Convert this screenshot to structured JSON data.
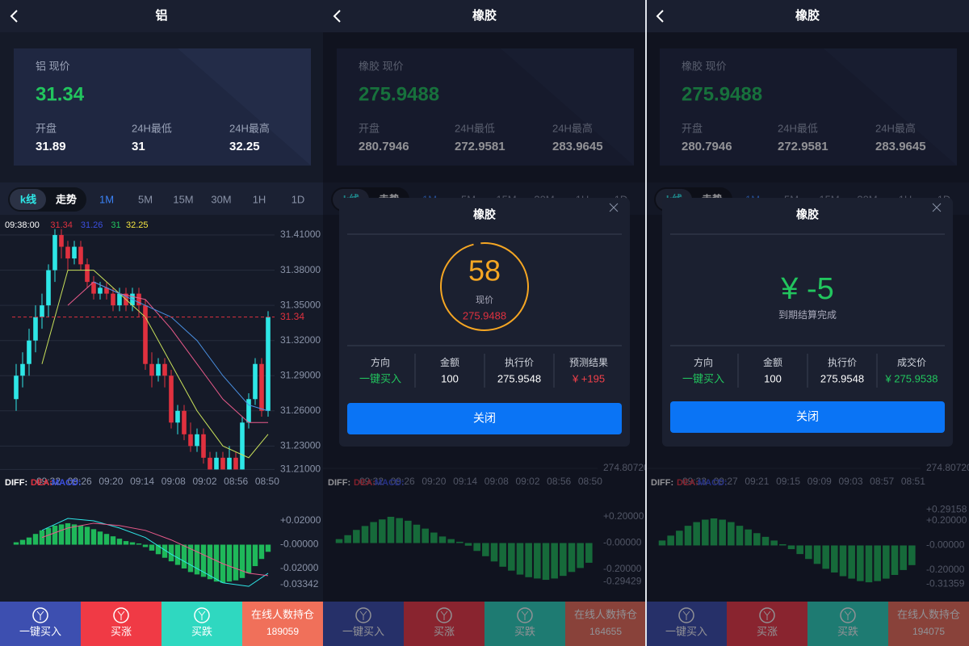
{
  "panels": [
    {
      "title": "铝",
      "card": {
        "label": "铝 现价",
        "price": "31.34",
        "stats": [
          {
            "label": "开盘",
            "value": "31.89"
          },
          {
            "label": "24H最低",
            "value": "31"
          },
          {
            "label": "24H最高",
            "value": "32.25"
          }
        ]
      },
      "tabs": [
        "k线",
        "走势"
      ],
      "periods": [
        "1M",
        "5M",
        "15M",
        "30M",
        "1H",
        "1D"
      ],
      "chart": {
        "type": "candlestick",
        "legend": [
          {
            "text": "09:38:00",
            "color": "#ffffff"
          },
          {
            "text": "31.34",
            "color": "#e0313f"
          },
          {
            "text": "31.26",
            "color": "#3b4fe0"
          },
          {
            "text": "31",
            "color": "#22c55e"
          },
          {
            "text": "32.25",
            "color": "#f5e642"
          }
        ],
        "ylim": [
          31.2075,
          31.4245
        ],
        "yticks": [
          {
            "value": 31.41,
            "label": "31.41000"
          },
          {
            "value": 31.38,
            "label": "31.38000"
          },
          {
            "value": 31.35,
            "label": "31.35000"
          },
          {
            "value": 31.32,
            "label": "31.32000"
          },
          {
            "value": 31.29,
            "label": "31.29000"
          },
          {
            "value": 31.26,
            "label": "31.26000"
          },
          {
            "value": 31.23,
            "label": "31.23000"
          },
          {
            "value": 31.21,
            "label": "31.21000"
          }
        ],
        "last": 31.34,
        "candles": [
          [
            31.27,
            31.29,
            31.3,
            31.26
          ],
          [
            31.29,
            31.3,
            31.31,
            31.28
          ],
          [
            31.3,
            31.32,
            31.33,
            31.29
          ],
          [
            31.32,
            31.34,
            31.35,
            31.31
          ],
          [
            31.34,
            31.35,
            31.36,
            31.33
          ],
          [
            31.35,
            31.38,
            31.385,
            31.34
          ],
          [
            31.38,
            31.41,
            31.415,
            31.37
          ],
          [
            31.41,
            31.4,
            31.415,
            31.39
          ],
          [
            31.4,
            31.39,
            31.405,
            31.38
          ],
          [
            31.39,
            31.4,
            31.405,
            31.385
          ],
          [
            31.4,
            31.385,
            31.405,
            31.38
          ],
          [
            31.385,
            31.37,
            31.39,
            31.365
          ],
          [
            31.37,
            31.36,
            31.375,
            31.355
          ],
          [
            31.36,
            31.365,
            31.37,
            31.355
          ],
          [
            31.365,
            31.36,
            31.37,
            31.355
          ],
          [
            31.36,
            31.35,
            31.365,
            31.345
          ],
          [
            31.35,
            31.36,
            31.365,
            31.345
          ],
          [
            31.36,
            31.35,
            31.365,
            31.345
          ],
          [
            31.35,
            31.36,
            31.365,
            31.345
          ],
          [
            31.36,
            31.35,
            31.365,
            31.34
          ],
          [
            31.35,
            31.3,
            31.355,
            31.295
          ],
          [
            31.3,
            31.29,
            31.31,
            31.28
          ],
          [
            31.29,
            31.3,
            31.305,
            31.285
          ],
          [
            31.3,
            31.29,
            31.305,
            31.28
          ],
          [
            31.29,
            31.25,
            31.295,
            31.245
          ],
          [
            31.25,
            31.26,
            31.265,
            31.24
          ],
          [
            31.26,
            31.24,
            31.265,
            31.235
          ],
          [
            31.24,
            31.23,
            31.25,
            31.225
          ],
          [
            31.23,
            31.24,
            31.245,
            31.225
          ],
          [
            31.24,
            31.22,
            31.245,
            31.215
          ],
          [
            31.22,
            31.21,
            31.225,
            31.21
          ],
          [
            31.21,
            31.22,
            31.225,
            31.21
          ],
          [
            31.22,
            31.21,
            31.225,
            31.21
          ],
          [
            31.21,
            31.22,
            31.23,
            31.21
          ],
          [
            31.22,
            31.21,
            31.225,
            31.21
          ],
          [
            31.21,
            31.25,
            31.255,
            31.21
          ],
          [
            31.25,
            31.27,
            31.275,
            31.245
          ],
          [
            31.27,
            31.3,
            31.305,
            31.265
          ],
          [
            31.3,
            31.26,
            31.305,
            31.255
          ],
          [
            31.26,
            31.34,
            31.345,
            31.255
          ]
        ],
        "ma_index": [
          4,
          8,
          12,
          16,
          20,
          24,
          28,
          32,
          36,
          39
        ],
        "ma": [
          {
            "color": "#c8e05a",
            "values": [
              31.3,
              31.38,
              31.38,
              31.36,
              31.34,
              31.3,
              31.26,
              31.23,
              31.22,
              31.24
            ]
          },
          {
            "color": "#e85a8a",
            "values": [
              null,
              31.35,
              31.37,
              31.36,
              31.355,
              31.33,
              31.3,
              31.27,
              31.25,
              31.25
            ]
          },
          {
            "color": "#4a90e2",
            "values": [
              null,
              null,
              31.37,
              31.36,
              31.35,
              31.34,
              31.32,
              31.29,
              31.265,
              31.26
            ]
          }
        ],
        "times": [
          "09:32",
          "09:26",
          "09:20",
          "09:14",
          "09:08",
          "09:02",
          "08:56",
          "08:50"
        ]
      },
      "macd": {
        "legend": [
          "DIFF:",
          "DEA:",
          "MACD:"
        ],
        "ylim": [
          -0.0444,
          0.0505
        ],
        "yticks": [
          {
            "value": 0.02,
            "label": "+0.02000"
          },
          {
            "value": 0,
            "label": "-0.00000"
          },
          {
            "value": -0.02,
            "label": "-0.02000"
          },
          {
            "value": -0.03342,
            "label": "-0.03342"
          }
        ],
        "bars": [
          0.002,
          0.004,
          0.006,
          0.009,
          0.012,
          0.014,
          0.016,
          0.017,
          0.018,
          0.017,
          0.016,
          0.015,
          0.013,
          0.011,
          0.009,
          0.007,
          0.005,
          0.003,
          0.002,
          0.001,
          -0.002,
          -0.005,
          -0.008,
          -0.011,
          -0.014,
          -0.017,
          -0.02,
          -0.023,
          -0.025,
          -0.027,
          -0.029,
          -0.031,
          -0.032,
          -0.031,
          -0.03,
          -0.028,
          -0.024,
          -0.018,
          -0.012,
          -0.006
        ],
        "diff": [
          0.012,
          0.022,
          0.02,
          0.014,
          0.006,
          -0.008,
          -0.02,
          -0.032,
          -0.035,
          -0.024
        ],
        "dea": [
          0.006,
          0.014,
          0.018,
          0.016,
          0.012,
          0.004,
          -0.006,
          -0.016,
          -0.024,
          -0.026
        ]
      },
      "buttons": [
        "一键买入",
        "买涨",
        "买跌"
      ],
      "online": {
        "label": "在线人数持仓",
        "count": "189059"
      }
    },
    {
      "title": "橡胶",
      "card": {
        "label": "橡胶 现价",
        "price": "275.9488",
        "stats": [
          {
            "label": "开盘",
            "value": "280.7946"
          },
          {
            "label": "24H最低",
            "value": "272.9581"
          },
          {
            "label": "24H最高",
            "value": "283.9645"
          }
        ]
      },
      "tabs": [
        "k线",
        "走势"
      ],
      "periods": [
        "1M",
        "5M",
        "15M",
        "30M",
        "1H",
        "1D"
      ],
      "chart": {
        "type": "candlestick",
        "ylim": [
          274.68,
          282.68
        ],
        "yticks": [
          {
            "value": 274.8072,
            "label": "274.80720"
          }
        ],
        "times": [
          "09:32",
          "09:26",
          "09:20",
          "09:14",
          "09:08",
          "09:02",
          "08:56",
          "08:50"
        ]
      },
      "macd": {
        "legend": [
          "DIFF:",
          "DEA:",
          "MACD:"
        ],
        "ylim": [
          -0.415,
          0.446
        ],
        "yticks": [
          {
            "value": 0.2,
            "label": "+0.20000"
          },
          {
            "value": 0,
            "label": "-0.00000"
          },
          {
            "value": -0.2,
            "label": "-0.20000"
          },
          {
            "value": -0.29429,
            "label": "-0.29429"
          }
        ],
        "bars": [
          0.03,
          0.06,
          0.1,
          0.13,
          0.16,
          0.18,
          0.2,
          0.19,
          0.17,
          0.14,
          0.11,
          0.08,
          0.05,
          0.03,
          0.01,
          -0.02,
          -0.06,
          -0.1,
          -0.14,
          -0.18,
          -0.21,
          -0.24,
          -0.26,
          -0.27,
          -0.28,
          -0.27,
          -0.25,
          -0.22,
          -0.19,
          -0.15
        ]
      },
      "buttons": [
        "一键买入",
        "买涨",
        "买跌"
      ],
      "online": {
        "label": "在线人数持仓",
        "count": "164655"
      },
      "modal": {
        "title": "橡胶",
        "countdown": 58,
        "price_label": "现价",
        "price": "275.9488",
        "columns": [
          {
            "head": "方向",
            "value": "一键买入",
            "color": "#22c55e"
          },
          {
            "head": "金额",
            "value": "100",
            "color": "#ffffff"
          },
          {
            "head": "执行价",
            "value": "275.9548",
            "color": "#ffffff"
          },
          {
            "head": "预测结果",
            "value": "¥ +195",
            "color": "#f0404a"
          }
        ],
        "button": "关闭"
      }
    },
    {
      "title": "橡胶",
      "card": {
        "label": "橡胶 现价",
        "price": "275.9488",
        "stats": [
          {
            "label": "开盘",
            "value": "280.7946"
          },
          {
            "label": "24H最低",
            "value": "272.9581"
          },
          {
            "label": "24H最高",
            "value": "283.9645"
          }
        ]
      },
      "tabs": [
        "k线",
        "走势"
      ],
      "periods": [
        "1M",
        "5M",
        "15M",
        "30M",
        "1H",
        "1D"
      ],
      "chart": {
        "type": "candlestick",
        "ylim": [
          274.68,
          282.68
        ],
        "yticks": [
          {
            "value": 274.8072,
            "label": "274.80720"
          }
        ],
        "times": [
          "09:33",
          "09:27",
          "09:21",
          "09:15",
          "09:09",
          "09:03",
          "08:57",
          "08:51"
        ]
      },
      "macd": {
        "legend": [
          "DIFF:",
          "DEA:",
          "MACD:"
        ],
        "ylim": [
          -0.424,
          0.496
        ],
        "yticks": [
          {
            "value": 0.29158,
            "label": "+0.29158"
          },
          {
            "value": 0.2,
            "label": "+0.20000"
          },
          {
            "value": 0,
            "label": "-0.00000"
          },
          {
            "value": -0.2,
            "label": "-0.20000"
          },
          {
            "value": -0.31359,
            "label": "-0.31359"
          }
        ],
        "bars": [
          0.04,
          0.08,
          0.12,
          0.16,
          0.19,
          0.21,
          0.22,
          0.21,
          0.19,
          0.16,
          0.13,
          0.1,
          0.07,
          0.04,
          0.01,
          -0.03,
          -0.07,
          -0.11,
          -0.15,
          -0.19,
          -0.22,
          -0.25,
          -0.27,
          -0.29,
          -0.3,
          -0.29,
          -0.27,
          -0.24,
          -0.2,
          -0.16
        ]
      },
      "buttons": [
        "一键买入",
        "买涨",
        "买跌"
      ],
      "online": {
        "label": "在线人数持仓",
        "count": "194075"
      },
      "modal": {
        "title": "橡胶",
        "result": "¥ -5",
        "result_note": "到期结算完成",
        "columns": [
          {
            "head": "方向",
            "value": "一键买入",
            "color": "#22c55e"
          },
          {
            "head": "金额",
            "value": "100",
            "color": "#ffffff"
          },
          {
            "head": "执行价",
            "value": "275.9548",
            "color": "#ffffff"
          },
          {
            "head": "成交价",
            "value": "¥ 275.9538",
            "color": "#22c55e"
          }
        ],
        "button": "关闭"
      }
    }
  ]
}
